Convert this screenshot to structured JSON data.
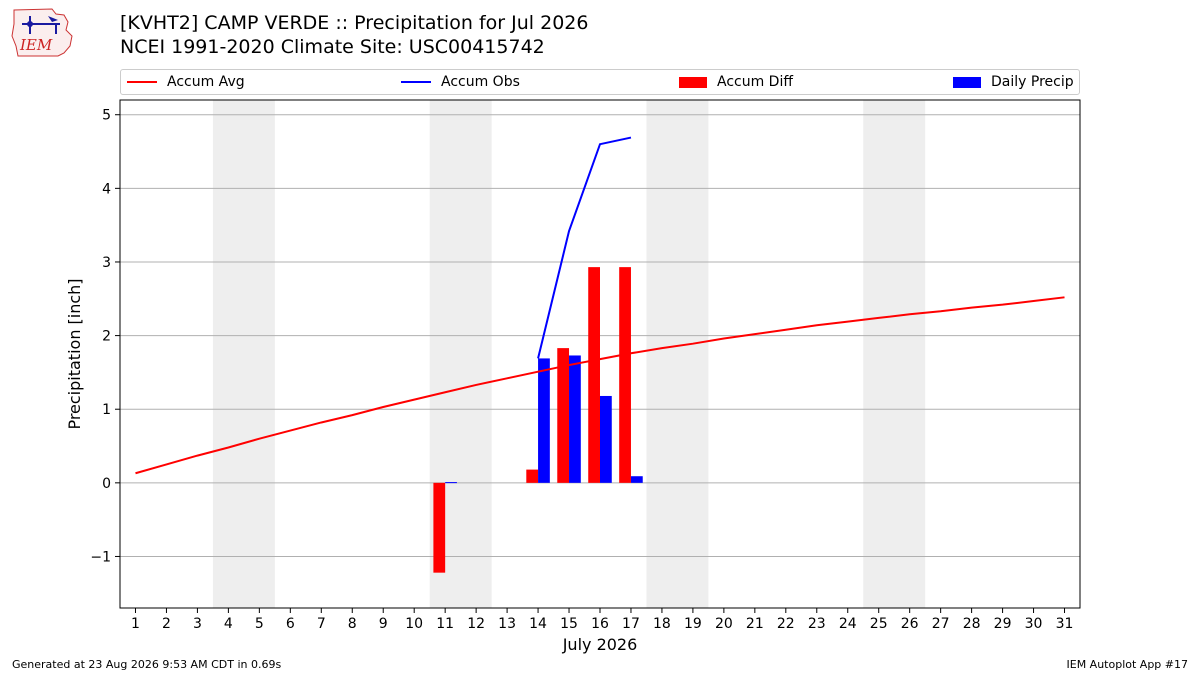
{
  "header": {
    "logo_text": "IEM",
    "title_line1": "[KVHT2] CAMP VERDE :: Precipitation for Jul 2026",
    "title_line2": "NCEI 1991-2020 Climate Site: USC00415742"
  },
  "legend": {
    "accum_avg": "Accum Avg",
    "accum_obs": "Accum Obs",
    "accum_diff": "Accum Diff",
    "daily_precip": "Daily Precip"
  },
  "footer": {
    "generated": "Generated at 23 Aug 2026 9:53 AM CDT in 0.69s",
    "app": "IEM Autoplot App #17"
  },
  "colors": {
    "accum_avg": "#ff0000",
    "accum_obs": "#0000ff",
    "accum_diff": "#ff0000",
    "daily_precip": "#0000ff",
    "weekend_shade": "#eeeeee",
    "grid": "#b0b0b0"
  },
  "chart_data": {
    "type": "bar",
    "xlabel": "July 2026",
    "ylabel": "Precipitation [inch]",
    "xlim": [
      0.5,
      31.5
    ],
    "ylim": [
      -1.7,
      5.2
    ],
    "yticks": [
      -1,
      0,
      1,
      2,
      3,
      4,
      5
    ],
    "y_tick_labels": [
      "−1",
      "0",
      "1",
      "2",
      "3",
      "4",
      "5"
    ],
    "days": [
      1,
      2,
      3,
      4,
      5,
      6,
      7,
      8,
      9,
      10,
      11,
      12,
      13,
      14,
      15,
      16,
      17,
      18,
      19,
      20,
      21,
      22,
      23,
      24,
      25,
      26,
      27,
      28,
      29,
      30,
      31
    ],
    "grid": "horizontal",
    "weekend_shaded_ranges": [
      [
        3.5,
        5.5
      ],
      [
        10.5,
        12.5
      ],
      [
        17.5,
        19.5
      ],
      [
        24.5,
        26.5
      ]
    ],
    "accum_avg": [
      0.13,
      0.25,
      0.37,
      0.48,
      0.6,
      0.71,
      0.82,
      0.92,
      1.03,
      1.13,
      1.23,
      1.33,
      1.42,
      1.51,
      1.6,
      1.68,
      1.76,
      1.83,
      1.89,
      1.96,
      2.02,
      2.08,
      2.14,
      2.19,
      2.24,
      2.29,
      2.33,
      2.38,
      2.42,
      2.47,
      2.52
    ],
    "accum_obs": {
      "days": [
        14,
        15,
        16,
        17
      ],
      "values": [
        1.69,
        3.42,
        4.6,
        4.69
      ]
    },
    "accum_diff": {
      "days": [
        11,
        14,
        15,
        16,
        17
      ],
      "values": [
        -1.22,
        0.18,
        1.83,
        2.93,
        2.93
      ]
    },
    "daily_precip": {
      "days": [
        11,
        14,
        15,
        16,
        17
      ],
      "values": [
        0.01,
        1.69,
        1.73,
        1.18,
        0.09
      ]
    }
  }
}
